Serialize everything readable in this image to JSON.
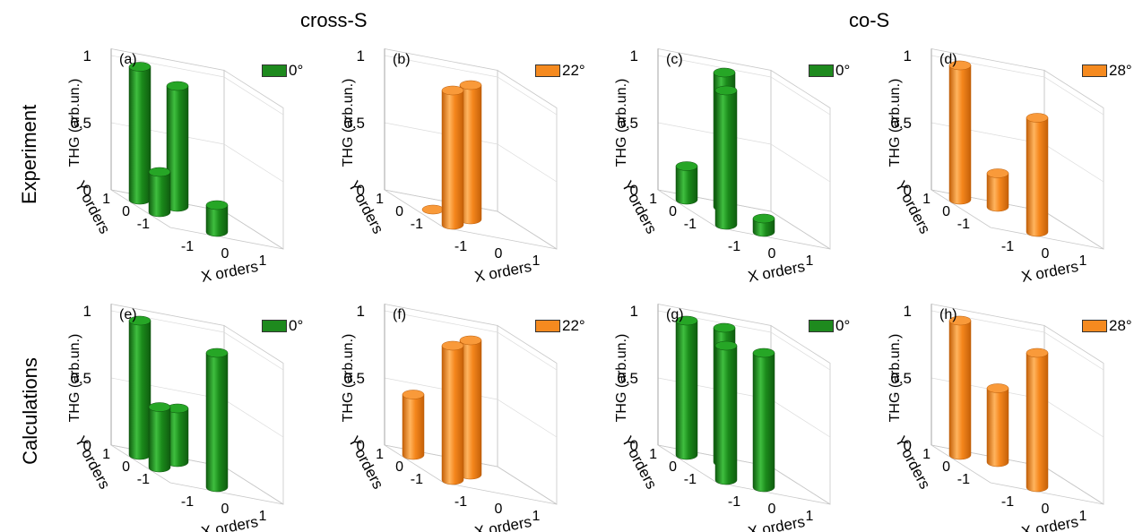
{
  "column_titles": [
    "cross-S",
    "co-S"
  ],
  "row_titles": [
    "Experiment",
    "Calculations"
  ],
  "colors": {
    "green": "#1e8a1e",
    "orange": "#f58a1f"
  },
  "chart_data": [
    {
      "type": "bar3d",
      "panel": "(a)",
      "legend": "0°",
      "color": "green",
      "z_label": "THG (arb.un.)",
      "x_label": "X orders",
      "y_label": "Y orders",
      "x_ticks": [
        "-1",
        "0",
        "1"
      ],
      "y_ticks": [
        "1",
        "0",
        "-1"
      ],
      "z_ticks": [
        "1",
        "0.5",
        "0"
      ],
      "zlim": [
        0,
        1
      ],
      "bars": [
        {
          "x": -1,
          "y": 1,
          "z": 0.99
        },
        {
          "x": -1,
          "y": 0,
          "z": 0.3
        },
        {
          "x": 0,
          "y": 1,
          "z": 0.9
        },
        {
          "x": 0,
          "y": -1,
          "z": 0.2
        }
      ]
    },
    {
      "type": "bar3d",
      "panel": "(b)",
      "legend": "22°",
      "color": "orange",
      "z_label": "THG (arb.un.)",
      "x_label": "X orders",
      "y_label": "Y orders",
      "x_ticks": [
        "-1",
        "0",
        "1"
      ],
      "y_ticks": [
        "1",
        "0",
        "-1"
      ],
      "z_ticks": [
        "1",
        "0.5",
        "0"
      ],
      "zlim": [
        0,
        1
      ],
      "bars": [
        {
          "x": -1,
          "y": 0,
          "z": 0.02
        },
        {
          "x": -1,
          "y": -1,
          "z": 1.0
        },
        {
          "x": 0,
          "y": 0,
          "z": 1.0
        }
      ]
    },
    {
      "type": "bar3d",
      "panel": "(c)",
      "legend": "0°",
      "color": "green",
      "z_label": "THG (arb.un.)",
      "x_label": "X orders",
      "y_label": "Y orders",
      "x_ticks": [
        "-1",
        "0",
        "1"
      ],
      "y_ticks": [
        "1",
        "0",
        "-1"
      ],
      "z_ticks": [
        "1",
        "0.5",
        "0"
      ],
      "zlim": [
        0,
        1
      ],
      "bars": [
        {
          "x": -1,
          "y": 1,
          "z": 0.25
        },
        {
          "x": -1,
          "y": -1,
          "z": 1.0
        },
        {
          "x": 0,
          "y": 1,
          "z": 1.0
        },
        {
          "x": 0,
          "y": -1,
          "z": 0.1
        }
      ]
    },
    {
      "type": "bar3d",
      "panel": "(d)",
      "legend": "28°",
      "color": "orange",
      "z_label": "THG (arb.un.)",
      "x_label": "X orders",
      "y_label": "Y orders",
      "x_ticks": [
        "-1",
        "0",
        "1"
      ],
      "y_ticks": [
        "1",
        "0",
        "-1"
      ],
      "z_ticks": [
        "1",
        "0.5",
        "0"
      ],
      "zlim": [
        0,
        1
      ],
      "bars": [
        {
          "x": -1,
          "y": 1,
          "z": 1.0
        },
        {
          "x": 0,
          "y": 1,
          "z": 0.25
        },
        {
          "x": 0,
          "y": -1,
          "z": 0.85
        }
      ]
    },
    {
      "type": "bar3d",
      "panel": "(e)",
      "legend": "0°",
      "color": "green",
      "z_label": "THG (arb.un.)",
      "x_label": "X orders",
      "y_label": "Y orders",
      "x_ticks": [
        "-1",
        "0",
        "1"
      ],
      "y_ticks": [
        "1",
        "0",
        "-1"
      ],
      "z_ticks": [
        "1",
        "0.5",
        "0"
      ],
      "zlim": [
        0,
        1
      ],
      "bars": [
        {
          "x": -1,
          "y": 1,
          "z": 1.0
        },
        {
          "x": -1,
          "y": 0,
          "z": 0.45
        },
        {
          "x": 0,
          "y": 1,
          "z": 0.4
        },
        {
          "x": 0,
          "y": -1,
          "z": 1.0
        }
      ]
    },
    {
      "type": "bar3d",
      "panel": "(f)",
      "legend": "22°",
      "color": "orange",
      "z_label": "THG (arb.un.)",
      "x_label": "X orders",
      "y_label": "Y orders",
      "x_ticks": [
        "-1",
        "0",
        "1"
      ],
      "y_ticks": [
        "1",
        "0",
        "-1"
      ],
      "z_ticks": [
        "1",
        "0.5",
        "0"
      ],
      "zlim": [
        0,
        1
      ],
      "bars": [
        {
          "x": -1,
          "y": 1,
          "z": 0.45
        },
        {
          "x": -1,
          "y": -1,
          "z": 1.0
        },
        {
          "x": 0,
          "y": 0,
          "z": 1.0
        }
      ]
    },
    {
      "type": "bar3d",
      "panel": "(g)",
      "legend": "0°",
      "color": "green",
      "z_label": "THG (arb.un.)",
      "x_label": "X orders",
      "y_label": "Y orders",
      "x_ticks": [
        "-1",
        "0",
        "1"
      ],
      "y_ticks": [
        "1",
        "0",
        "-1"
      ],
      "z_ticks": [
        "1",
        "0.5",
        "0"
      ],
      "zlim": [
        0,
        1
      ],
      "bars": [
        {
          "x": -1,
          "y": 1,
          "z": 1.0
        },
        {
          "x": -1,
          "y": -1,
          "z": 1.0
        },
        {
          "x": 0,
          "y": 1,
          "z": 1.0
        },
        {
          "x": 0,
          "y": -1,
          "z": 1.0
        }
      ]
    },
    {
      "type": "bar3d",
      "panel": "(h)",
      "legend": "28°",
      "color": "orange",
      "z_label": "THG (arb.un.)",
      "x_label": "X orders",
      "y_label": "Y orders",
      "x_ticks": [
        "-1",
        "0",
        "1"
      ],
      "y_ticks": [
        "1",
        "0",
        "-1"
      ],
      "z_ticks": [
        "1",
        "0.5",
        "0"
      ],
      "zlim": [
        0,
        1
      ],
      "bars": [
        {
          "x": -1,
          "y": 1,
          "z": 1.0
        },
        {
          "x": 0,
          "y": 1,
          "z": 0.55
        },
        {
          "x": 0,
          "y": -1,
          "z": 1.0
        }
      ]
    }
  ]
}
